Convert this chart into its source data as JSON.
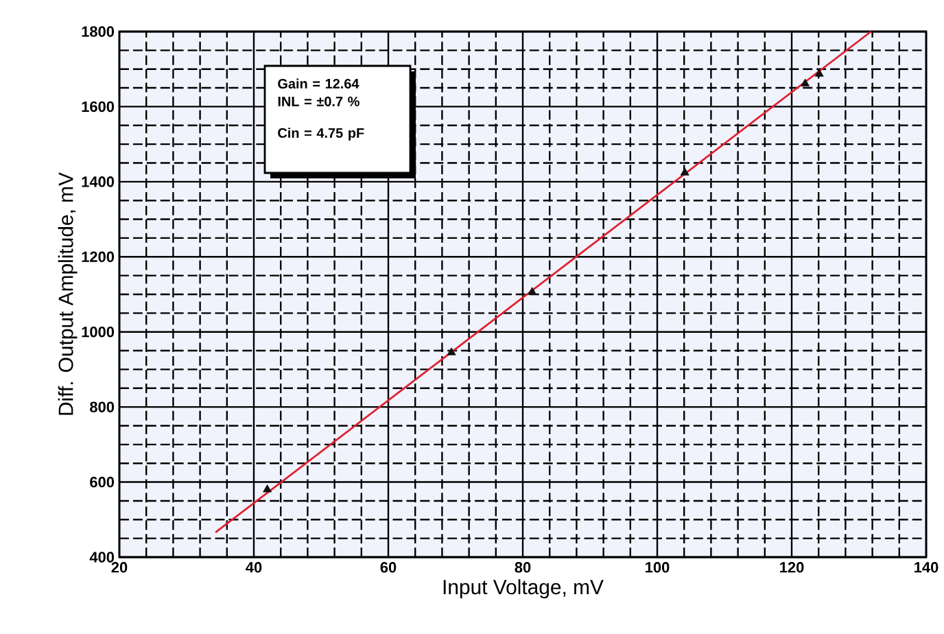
{
  "chart_data": {
    "type": "scatter",
    "xlabel": "Input Voltage, mV",
    "ylabel": "Diff. Output Amplitude, mV",
    "xlim": [
      20,
      140
    ],
    "ylim": [
      400,
      1800
    ],
    "xticks": [
      20,
      {
        "value": 24,
        "label": null
      },
      {
        "value": 28,
        "label": null
      },
      {
        "value": 32,
        "label": null
      },
      {
        "value": 36,
        "label": null
      },
      40,
      {
        "value": 44,
        "label": null
      },
      {
        "value": 48,
        "label": null
      },
      {
        "value": 52,
        "label": null
      },
      {
        "value": 56,
        "label": null
      },
      60,
      {
        "value": 64,
        "label": null
      },
      {
        "value": 68,
        "label": null
      },
      {
        "value": 72,
        "label": null
      },
      {
        "value": 76,
        "label": null
      },
      80,
      {
        "value": 84,
        "label": null
      },
      {
        "value": 88,
        "label": null
      },
      {
        "value": 92,
        "label": null
      },
      {
        "value": 96,
        "label": null
      },
      100,
      {
        "value": 104,
        "label": null
      },
      {
        "value": 108,
        "label": null
      },
      {
        "value": 112,
        "label": null
      },
      {
        "value": 116,
        "label": null
      },
      120,
      {
        "value": 124,
        "label": null
      },
      {
        "value": 128,
        "label": null
      },
      {
        "value": 132,
        "label": null
      },
      {
        "value": 136,
        "label": null
      },
      140
    ],
    "yticks": [
      400,
      {
        "value": 450,
        "label": null
      },
      {
        "value": 500,
        "label": null
      },
      {
        "value": 550,
        "label": null
      },
      600,
      {
        "value": 650,
        "label": null
      },
      {
        "value": 700,
        "label": null
      },
      {
        "value": 750,
        "label": null
      },
      800,
      {
        "value": 850,
        "label": null
      },
      {
        "value": 900,
        "label": null
      },
      {
        "value": 950,
        "label": null
      },
      1000,
      {
        "value": 1050,
        "label": null
      },
      {
        "value": 1100,
        "label": null
      },
      {
        "value": 1150,
        "label": null
      },
      1200,
      {
        "value": 1250,
        "label": null
      },
      {
        "value": 1300,
        "label": null
      },
      {
        "value": 1350,
        "label": null
      },
      1400,
      {
        "value": 1450,
        "label": null
      },
      {
        "value": 1500,
        "label": null
      },
      {
        "value": 1550,
        "label": null
      },
      1600,
      {
        "value": 1650,
        "label": null
      },
      {
        "value": 1700,
        "label": null
      },
      {
        "value": 1750,
        "label": null
      },
      1800
    ],
    "grid": true,
    "marker": "triangle",
    "annotations": [
      "Gain = 12.64",
      "INL = ±0.7 %",
      "Cin = 4.75 pF"
    ],
    "series": [
      {
        "color": "#111111",
        "x": [
          42,
          69.4,
          81.4,
          104.1,
          122,
          124.1
        ],
        "values": [
          580,
          945,
          1106,
          1424,
          1661,
          1687
        ]
      },
      {
        "type": "line",
        "color": "#e02030",
        "marker": "none",
        "x": [
          34.3,
          131.8
        ],
        "values": [
          466,
          1800
        ]
      }
    ]
  }
}
